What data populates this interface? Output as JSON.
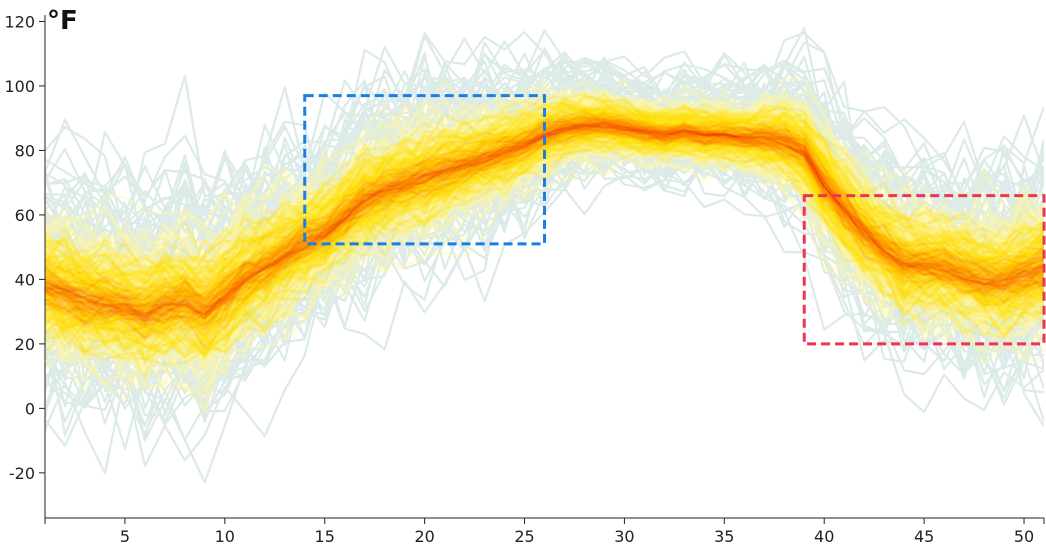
{
  "chart_data": {
    "type": "line",
    "title": "",
    "ylabel": "°F",
    "xlabel": "",
    "xlim": [
      1,
      51
    ],
    "ylim": [
      -34,
      122
    ],
    "x_ticks": [
      5,
      10,
      15,
      20,
      25,
      30,
      35,
      40,
      45,
      50
    ],
    "x_tick_labels": [
      "5",
      "10",
      "15",
      "20",
      "25",
      "30",
      "35",
      "40",
      "45",
      "50"
    ],
    "y_ticks": [
      -20,
      0,
      20,
      40,
      60,
      80,
      100,
      120
    ],
    "y_tick_labels": [
      "-20",
      "0",
      "20",
      "40",
      "60",
      "80",
      "100",
      "120"
    ],
    "grid": false,
    "legend": "none",
    "colors": {
      "spaghetti_line": "#dcebe7",
      "density_low": "#fff5a0",
      "density_mid": "#ffe000",
      "density_high": "#ff6a00",
      "density_peak": "#e01010",
      "highlight_blue": "#1a7ee8",
      "highlight_red": "#ee3355"
    },
    "weekly_median": {
      "weeks": [
        1,
        2,
        3,
        4,
        5,
        6,
        7,
        8,
        9,
        10,
        11,
        12,
        13,
        14,
        15,
        16,
        17,
        18,
        19,
        20,
        21,
        22,
        23,
        24,
        25,
        26,
        27,
        28,
        29,
        30,
        31,
        32,
        33,
        34,
        35,
        36,
        37,
        38,
        39,
        40,
        41,
        42,
        43,
        44,
        45,
        46,
        47,
        48,
        49,
        50,
        51
      ],
      "values": [
        38,
        36,
        34,
        33,
        32,
        30,
        32,
        34,
        30,
        35,
        41,
        44,
        48,
        52,
        55,
        60,
        65,
        68,
        70,
        72,
        74,
        76,
        78,
        80,
        82,
        85,
        87,
        88,
        88,
        87,
        86,
        85,
        86,
        85,
        85,
        84,
        84,
        83,
        80,
        70,
        62,
        55,
        50,
        45,
        45,
        44,
        42,
        40,
        40,
        42,
        44
      ]
    },
    "band_spread": {
      "weeks": [
        1,
        6,
        9,
        15,
        20,
        26,
        30,
        36,
        40,
        45,
        51
      ],
      "lower": [
        20,
        15,
        10,
        35,
        45,
        65,
        72,
        68,
        45,
        22,
        20
      ],
      "upper": [
        65,
        62,
        60,
        72,
        85,
        92,
        92,
        90,
        84,
        62,
        65
      ]
    },
    "highlight_regions": [
      {
        "name": "blue-highlight",
        "x": [
          14,
          26
        ],
        "y": [
          51,
          97
        ],
        "color": "#1a7ee8"
      },
      {
        "name": "red-highlight",
        "x": [
          39,
          51
        ],
        "y": [
          20,
          66
        ],
        "color": "#ee3355"
      }
    ]
  }
}
